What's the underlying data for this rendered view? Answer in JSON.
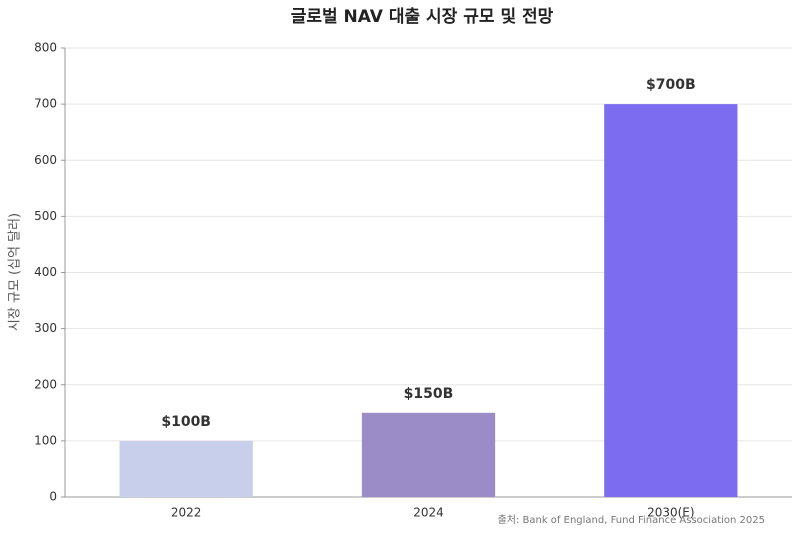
{
  "chart_data": {
    "type": "bar",
    "title": "글로벌 NAV 대출 시장 규모 및 전망",
    "ylabel": "시장 규모 (십억 달러)",
    "categories": [
      "2022",
      "2024",
      "2030(E)"
    ],
    "values": [
      100,
      150,
      700
    ],
    "value_labels": [
      "$100B",
      "$150B",
      "$700B"
    ],
    "colors": [
      "#c8cfea",
      "#9b8cc8",
      "#7b6cf0"
    ],
    "ylim": [
      0,
      800
    ],
    "yticks": [
      0,
      100,
      200,
      300,
      400,
      500,
      600,
      700,
      800
    ],
    "grid": true,
    "source": "출처: Bank of England, Fund Finance Association 2025"
  }
}
